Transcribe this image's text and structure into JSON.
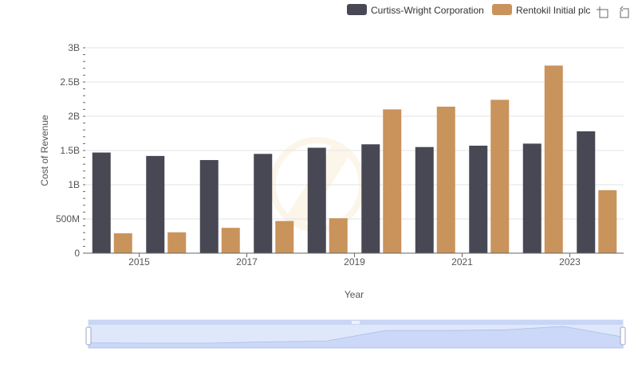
{
  "chart_data": {
    "type": "bar",
    "title": "",
    "xlabel": "Year",
    "ylabel": "Cost of Revenue",
    "categories": [
      "2014",
      "2015",
      "2016",
      "2017",
      "2018",
      "2019",
      "2020",
      "2021",
      "2022",
      "2023"
    ],
    "x_tick_labels": [
      "2015",
      "2017",
      "2019",
      "2021",
      "2023"
    ],
    "y_tick_labels": [
      "0",
      "500M",
      "1B",
      "1.5B",
      "2B",
      "2.5B",
      "3B"
    ],
    "y_tick_values": [
      0,
      500000000,
      1000000000,
      1500000000,
      2000000000,
      2500000000,
      3000000000
    ],
    "ylim": [
      0,
      3000000000
    ],
    "grid": true,
    "legend_position": "top-right",
    "series": [
      {
        "name": "Curtiss-Wright Corporation",
        "color": "#484854",
        "values": [
          1470000000,
          1420000000,
          1360000000,
          1450000000,
          1540000000,
          1590000000,
          1550000000,
          1570000000,
          1600000000,
          1780000000
        ]
      },
      {
        "name": "Rentokil Initial plc",
        "color": "#c9935c",
        "values": [
          290000000,
          305000000,
          370000000,
          470000000,
          510000000,
          2100000000,
          2140000000,
          2240000000,
          2740000000,
          920000000
        ]
      }
    ]
  },
  "toolbar": {
    "zoom_icon": "zoom-crop-icon",
    "restore_icon": "restore-icon"
  }
}
